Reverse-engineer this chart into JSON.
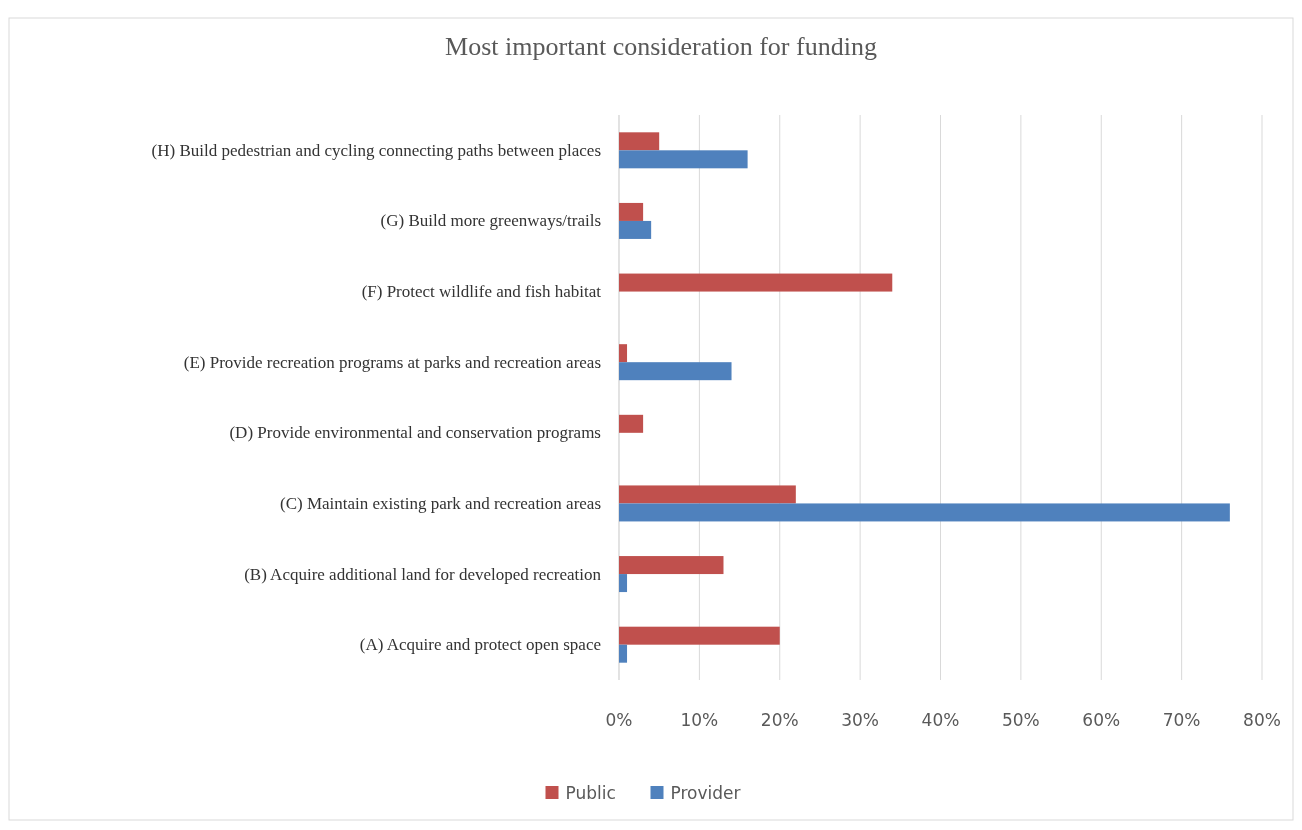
{
  "chart_data": {
    "type": "bar",
    "orientation": "horizontal",
    "title": "Most important consideration for funding",
    "categories": [
      "(H) Build pedestrian and cycling connecting paths between places",
      "(G) Build more greenways/trails",
      "(F) Protect wildlife and fish habitat",
      "(E) Provide recreation programs at parks and recreation areas",
      "(D) Provide environmental and conservation programs",
      "(C) Maintain existing park and recreation areas",
      "(B) Acquire additional land for developed recreation",
      "(A) Acquire and protect open space"
    ],
    "series": [
      {
        "name": "Public",
        "color": "#c0504d",
        "values": [
          5,
          3,
          34,
          1,
          3,
          22,
          13,
          20
        ]
      },
      {
        "name": "Provider",
        "color": "#4f81bd",
        "values": [
          16,
          4,
          null,
          14,
          null,
          76,
          1,
          1
        ]
      }
    ],
    "xlim": [
      0,
      80
    ],
    "xticks": [
      {
        "value": 0,
        "label": "0%"
      },
      {
        "value": 10,
        "label": "10%"
      },
      {
        "value": 20,
        "label": "20%"
      },
      {
        "value": 30,
        "label": "30%"
      },
      {
        "value": 40,
        "label": "40%"
      },
      {
        "value": 50,
        "label": "50%"
      },
      {
        "value": 60,
        "label": "60%"
      },
      {
        "value": 70,
        "label": "70%"
      },
      {
        "value": 80,
        "label": "80%"
      }
    ],
    "grid": "x",
    "legend": "bottom"
  }
}
